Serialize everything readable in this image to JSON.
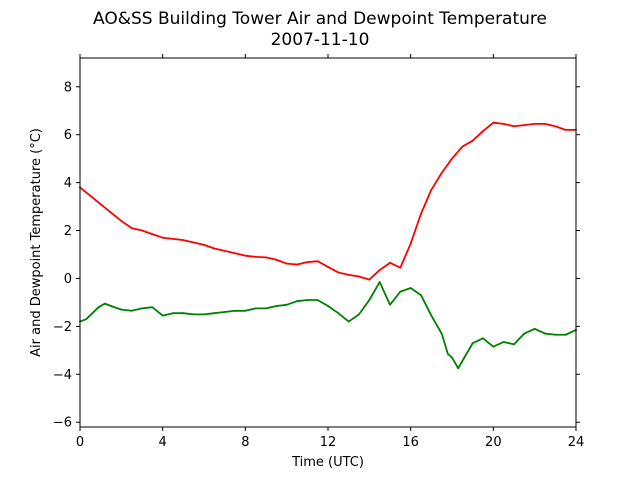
{
  "chart_data": {
    "type": "line",
    "title": "AO&SS Building Tower Air and Dewpoint Temperature",
    "subtitle": "2007-11-10",
    "xlabel": "Time (UTC)",
    "ylabel": "Air and Dewpoint Temperature (°C)",
    "xlim": [
      0,
      24
    ],
    "ylim": [
      -6.2,
      9.2
    ],
    "xticks": [
      0,
      4,
      8,
      12,
      16,
      20,
      24
    ],
    "yticks": [
      -6,
      -4,
      -2,
      0,
      2,
      4,
      6,
      8
    ],
    "grid": false,
    "legend": "none",
    "colors": {
      "air": "#ff0000",
      "dewpoint": "#008000",
      "frame": "#000000"
    },
    "series": [
      {
        "key": "air",
        "x": [
          0,
          0.5,
          1,
          1.5,
          2,
          2.5,
          3,
          3.5,
          4,
          4.5,
          5,
          5.5,
          6,
          6.5,
          7,
          7.5,
          8,
          8.5,
          9,
          9.5,
          10,
          10.5,
          11,
          11.5,
          12,
          12.5,
          13,
          13.5,
          14,
          14.5,
          15,
          15.5,
          16,
          16.5,
          17,
          17.5,
          18,
          18.5,
          19,
          19.5,
          20,
          20.5,
          21,
          21.5,
          22,
          22.5,
          23,
          23.5,
          24
        ],
        "values": [
          3.8,
          3.45,
          3.1,
          2.75,
          2.4,
          2.1,
          2.0,
          1.85,
          1.7,
          1.65,
          1.6,
          1.5,
          1.4,
          1.25,
          1.15,
          1.05,
          0.95,
          0.9,
          0.88,
          0.78,
          0.62,
          0.58,
          0.68,
          0.72,
          0.48,
          0.25,
          0.15,
          0.08,
          -0.05,
          0.35,
          0.65,
          0.45,
          1.45,
          2.7,
          3.7,
          4.4,
          5.0,
          5.5,
          5.75,
          6.15,
          6.5,
          6.45,
          6.35,
          6.4,
          6.45,
          6.45,
          6.35,
          6.2,
          6.2
        ]
      },
      {
        "key": "dewpoint",
        "x": [
          0,
          0.3,
          0.6,
          0.9,
          1.2,
          1.5,
          2,
          2.5,
          3,
          3.5,
          4,
          4.5,
          5,
          5.5,
          6,
          6.5,
          7,
          7.5,
          8,
          8.5,
          9,
          9.5,
          10,
          10.5,
          11,
          11.5,
          12,
          12.5,
          13,
          13.5,
          14,
          14.5,
          15,
          15.5,
          16,
          16.5,
          17,
          17.5,
          17.8,
          18,
          18.3,
          18.6,
          19,
          19.5,
          20,
          20.5,
          21,
          21.5,
          22,
          22.5,
          23,
          23.5,
          24
        ],
        "values": [
          -1.8,
          -1.7,
          -1.45,
          -1.2,
          -1.05,
          -1.15,
          -1.3,
          -1.35,
          -1.25,
          -1.2,
          -1.55,
          -1.45,
          -1.45,
          -1.5,
          -1.5,
          -1.45,
          -1.4,
          -1.35,
          -1.35,
          -1.25,
          -1.25,
          -1.15,
          -1.1,
          -0.95,
          -0.9,
          -0.9,
          -1.15,
          -1.45,
          -1.8,
          -1.5,
          -0.9,
          -0.15,
          -1.1,
          -0.55,
          -0.4,
          -0.7,
          -1.55,
          -2.3,
          -3.15,
          -3.3,
          -3.75,
          -3.3,
          -2.7,
          -2.5,
          -2.85,
          -2.65,
          -2.75,
          -2.3,
          -2.1,
          -2.3,
          -2.35,
          -2.35,
          -2.15
        ]
      }
    ]
  }
}
